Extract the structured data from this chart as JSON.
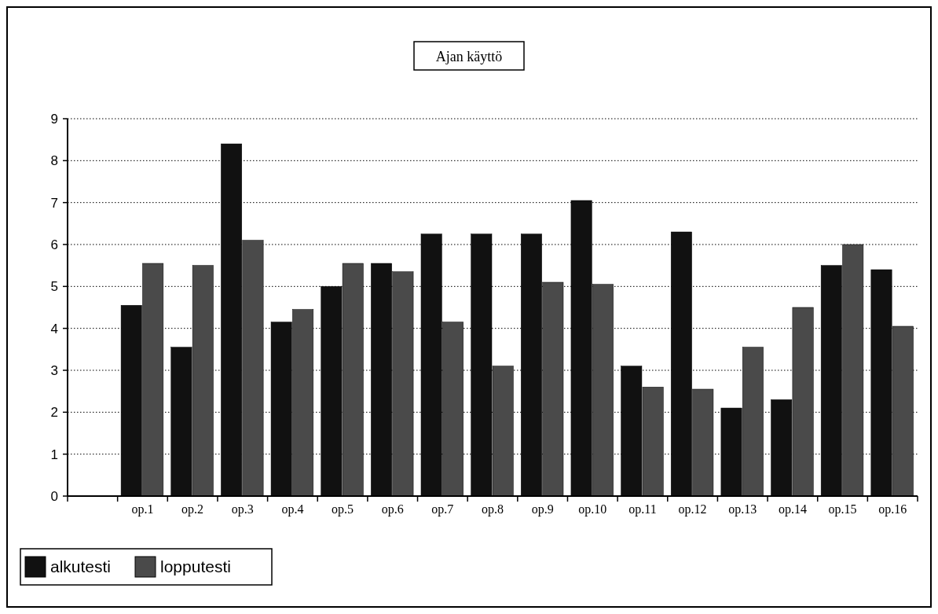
{
  "chart_data": {
    "type": "bar",
    "title": "Ajan käyttö",
    "categories": [
      null,
      "op.1",
      "op.2",
      "op.3",
      "op.4",
      "op.5",
      "op.6",
      "op.7",
      "op.8",
      "op.9",
      "op.10",
      "op.11",
      "op.12",
      "op.13",
      "op.14",
      "op.15",
      "op.16"
    ],
    "series": [
      {
        "name": "alkutesti",
        "color": "#111111",
        "values": [
          null,
          4.55,
          3.55,
          8.4,
          4.15,
          5.0,
          5.55,
          6.25,
          6.25,
          6.25,
          7.05,
          3.1,
          6.3,
          2.1,
          2.3,
          5.5,
          5.4
        ]
      },
      {
        "name": "lopputesti",
        "color": "#4a4a4a",
        "values": [
          null,
          5.55,
          5.5,
          6.1,
          4.45,
          5.55,
          5.35,
          4.15,
          3.1,
          5.1,
          5.05,
          2.6,
          2.55,
          3.55,
          4.5,
          6.0,
          4.05
        ]
      }
    ],
    "ylim": [
      0,
      9
    ],
    "yticks": [
      0,
      1,
      2,
      3,
      4,
      5,
      6,
      7,
      8,
      9
    ],
    "grid": "y",
    "legend": "bottom left"
  }
}
